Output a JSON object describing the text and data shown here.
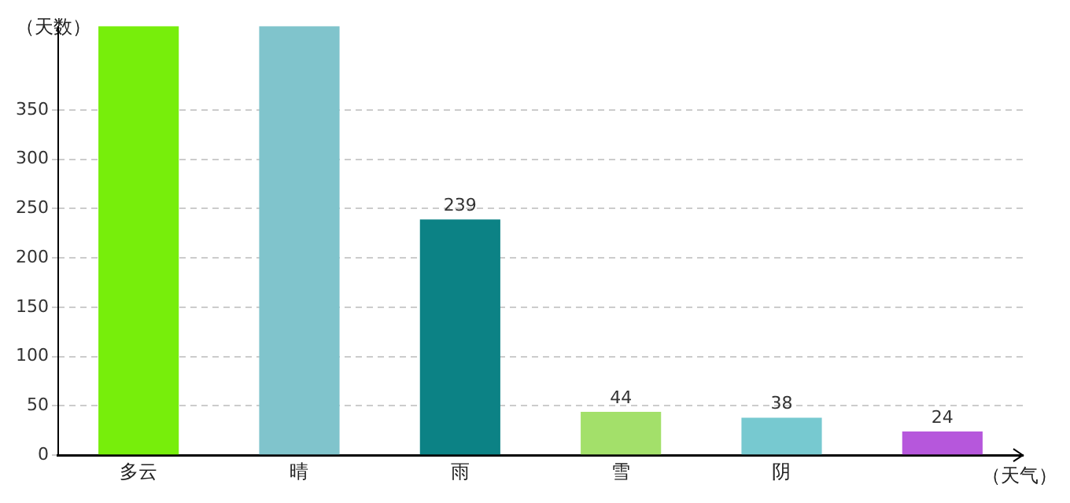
{
  "chart_data": {
    "type": "bar",
    "xlabel": "（天气）",
    "ylabel": "（天数）",
    "categories": [
      "多云",
      "晴",
      "雨",
      "雪",
      "阴",
      null
    ],
    "values": [
      435,
      435,
      239,
      44,
      38,
      24
    ],
    "colors": [
      "#77ee0b",
      "#80c4cc",
      "#0c8285",
      "#a3e06a",
      "#77c9d0",
      "#b657dc"
    ],
    "value_labels": [
      null,
      null,
      "239",
      "44",
      "38",
      "24"
    ],
    "ylim": [
      0,
      435
    ],
    "yticks": [
      0,
      50,
      100,
      150,
      200,
      250,
      300,
      350
    ],
    "grid": "y"
  }
}
